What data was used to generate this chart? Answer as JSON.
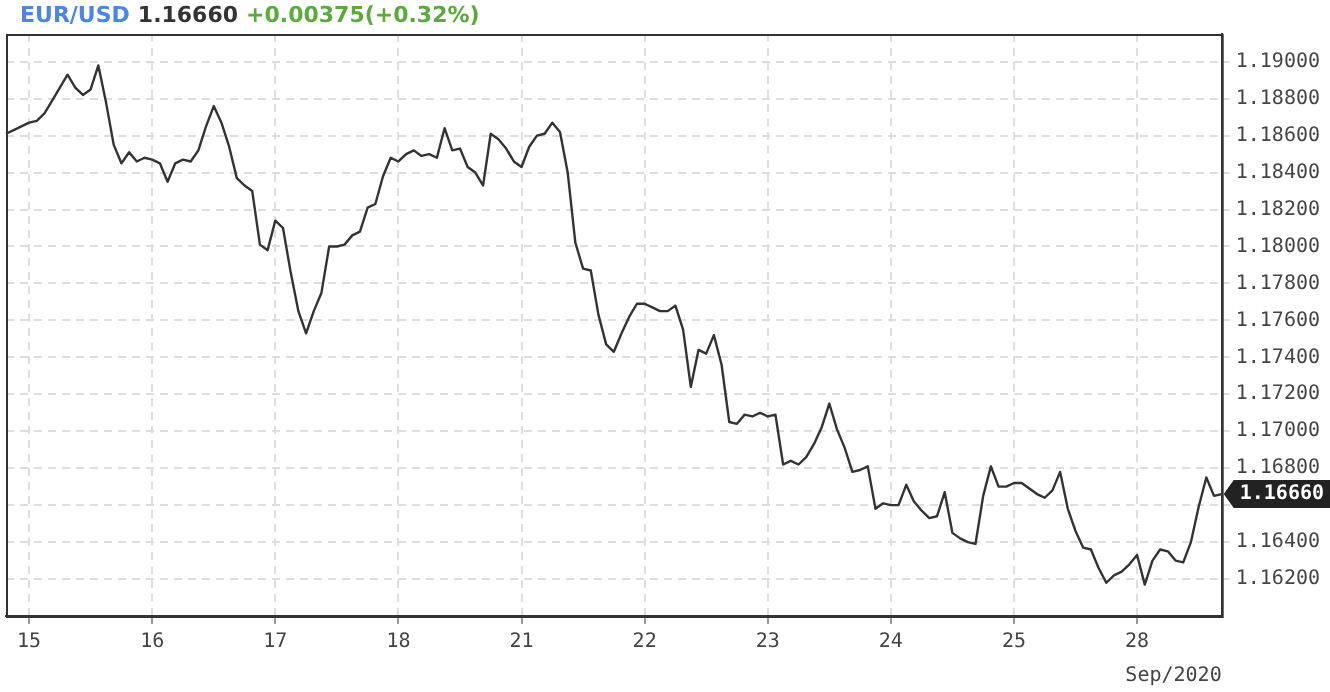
{
  "chart_data": {
    "type": "line",
    "title": "EUR/USD",
    "xlabel": "Sep/2020",
    "annotations": [
      "1.16660",
      "+0.00375(+0.32%)",
      "1.16660"
    ],
    "categories": [
      null,
      null,
      null,
      "15",
      null,
      null,
      null,
      null,
      null,
      null,
      null,
      null,
      null,
      null,
      null,
      null,
      null,
      null,
      null,
      "16",
      null,
      null,
      null,
      null,
      null,
      null,
      null,
      null,
      null,
      null,
      null,
      null,
      null,
      null,
      null,
      "17",
      null,
      null,
      null,
      null,
      null,
      null,
      null,
      null,
      null,
      null,
      null,
      null,
      null,
      null,
      null,
      "18",
      null,
      null,
      null,
      null,
      null,
      null,
      null,
      null,
      null,
      null,
      null,
      null,
      null,
      null,
      null,
      "21",
      null,
      null,
      null,
      null,
      null,
      null,
      null,
      null,
      null,
      null,
      null,
      null,
      null,
      null,
      null,
      "22",
      null,
      null,
      null,
      null,
      null,
      null,
      null,
      null,
      null,
      null,
      null,
      null,
      null,
      null,
      null,
      "23",
      null,
      null,
      null,
      null,
      null,
      null,
      null,
      null,
      null,
      null,
      null,
      null,
      null,
      null,
      null,
      "24",
      null,
      null,
      null,
      null,
      null,
      null,
      null,
      null,
      null,
      null,
      null,
      null,
      null,
      null,
      null,
      "25",
      null,
      null,
      null,
      null,
      null,
      null,
      null,
      null,
      null,
      null,
      null,
      null,
      null,
      null,
      null,
      "28",
      null,
      null,
      null,
      null,
      null,
      null,
      null,
      null,
      null,
      null,
      null
    ],
    "ylim": [
      1.16,
      1.1915
    ],
    "yticks": [
      {
        "value": 1.162,
        "label": "1.16200"
      },
      {
        "value": 1.164,
        "label": "1.16400"
      },
      {
        "value": 1.166,
        "label": null
      },
      {
        "value": 1.168,
        "label": "1.16800"
      },
      {
        "value": 1.17,
        "label": "1.17000"
      },
      {
        "value": 1.172,
        "label": "1.17200"
      },
      {
        "value": 1.174,
        "label": "1.17400"
      },
      {
        "value": 1.176,
        "label": "1.17600"
      },
      {
        "value": 1.178,
        "label": "1.17800"
      },
      {
        "value": 1.18,
        "label": "1.18000"
      },
      {
        "value": 1.182,
        "label": "1.18200"
      },
      {
        "value": 1.184,
        "label": "1.18400"
      },
      {
        "value": 1.186,
        "label": "1.18600"
      },
      {
        "value": 1.188,
        "label": "1.18800"
      },
      {
        "value": 1.19,
        "label": "1.19000"
      }
    ],
    "grid": true,
    "legend": false,
    "marker": "none",
    "line_style": "solid",
    "series": [
      {
        "color": "#333333",
        "values": [
          1.1861,
          1.1863,
          1.1865,
          1.1867,
          1.1868,
          1.1872,
          1.1879,
          1.1886,
          1.1893,
          1.1886,
          1.1882,
          1.1885,
          1.1898,
          1.1878,
          1.1855,
          1.1845,
          1.1851,
          1.1846,
          1.1848,
          1.1847,
          1.1845,
          1.1835,
          1.1845,
          1.1847,
          1.1846,
          1.1852,
          1.1865,
          1.1876,
          1.1867,
          1.1854,
          1.1837,
          1.1833,
          1.183,
          1.1801,
          1.1798,
          1.1814,
          1.181,
          1.1786,
          1.1765,
          1.1753,
          1.1765,
          1.1775,
          1.18,
          1.18,
          1.1801,
          1.1806,
          1.1808,
          1.1821,
          1.1823,
          1.1838,
          1.1848,
          1.1846,
          1.185,
          1.1852,
          1.1849,
          1.185,
          1.1848,
          1.1864,
          1.1852,
          1.1853,
          1.1843,
          1.184,
          1.1833,
          1.1861,
          1.1858,
          1.1853,
          1.1846,
          1.1843,
          1.1854,
          1.186,
          1.1861,
          1.1867,
          1.1862,
          1.184,
          1.1802,
          1.1788,
          1.1787,
          1.1763,
          1.1747,
          1.1743,
          1.1753,
          1.1762,
          1.1769,
          1.1769,
          1.1767,
          1.1765,
          1.1765,
          1.1768,
          1.1755,
          1.1724,
          1.1744,
          1.1742,
          1.1752,
          1.1736,
          1.1705,
          1.1704,
          1.1709,
          1.1708,
          1.171,
          1.1708,
          1.1709,
          1.1682,
          1.1684,
          1.1682,
          1.1686,
          1.1693,
          1.1702,
          1.1715,
          1.1701,
          1.1691,
          1.1678,
          1.1679,
          1.1681,
          1.1658,
          1.1661,
          1.166,
          1.166,
          1.1671,
          1.1662,
          1.1657,
          1.1653,
          1.1654,
          1.1667,
          1.1645,
          1.1642,
          1.164,
          1.1639,
          1.1665,
          1.1681,
          1.167,
          1.167,
          1.1672,
          1.1672,
          1.1669,
          1.1666,
          1.1664,
          1.1668,
          1.1678,
          1.1658,
          1.1646,
          1.1637,
          1.1636,
          1.1626,
          1.1618,
          1.1622,
          1.1624,
          1.1628,
          1.1633,
          1.1617,
          1.163,
          1.1636,
          1.1635,
          1.163,
          1.1629,
          1.164,
          1.1659,
          1.1675,
          1.1665,
          1.1666
        ]
      }
    ]
  }
}
